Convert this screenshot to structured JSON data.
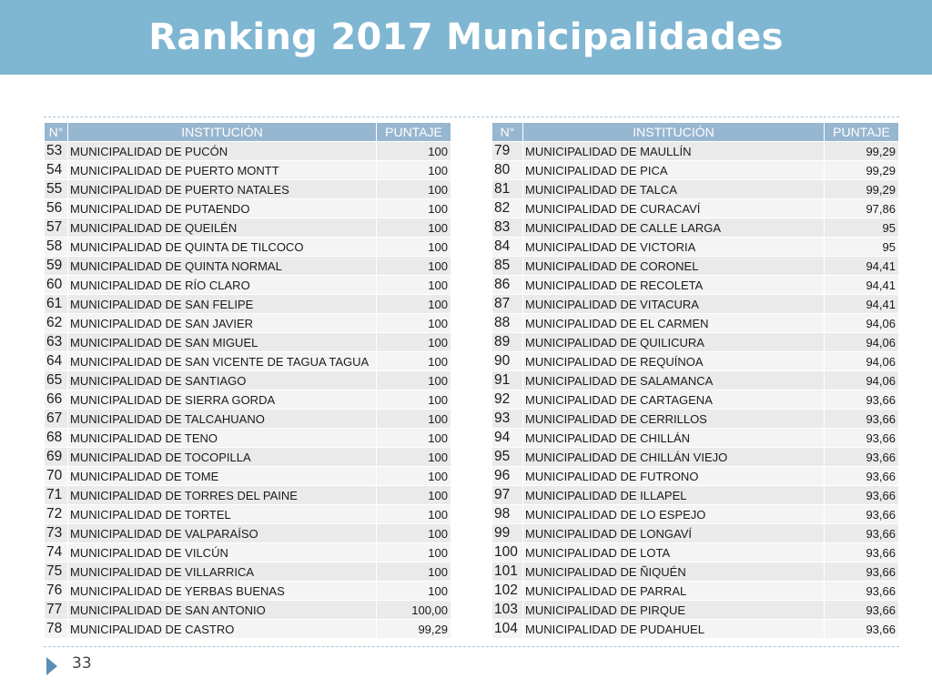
{
  "title": "Ranking 2017 Municipalidades",
  "headers": {
    "num": "N°",
    "institution": "INSTITUCIÓN",
    "score": "PUNTAJE"
  },
  "left_rows": [
    {
      "num": "53",
      "name": "MUNICIPALIDAD DE PUCÓN",
      "score": "100"
    },
    {
      "num": "54",
      "name": "MUNICIPALIDAD DE PUERTO MONTT",
      "score": "100"
    },
    {
      "num": "55",
      "name": "MUNICIPALIDAD DE PUERTO NATALES",
      "score": "100"
    },
    {
      "num": "56",
      "name": "MUNICIPALIDAD DE PUTAENDO",
      "score": "100"
    },
    {
      "num": "57",
      "name": "MUNICIPALIDAD DE QUEILÉN",
      "score": "100"
    },
    {
      "num": "58",
      "name": "MUNICIPALIDAD DE QUINTA DE TILCOCO",
      "score": "100"
    },
    {
      "num": "59",
      "name": "MUNICIPALIDAD DE QUINTA NORMAL",
      "score": "100"
    },
    {
      "num": "60",
      "name": "MUNICIPALIDAD DE RÍO CLARO",
      "score": "100"
    },
    {
      "num": "61",
      "name": "MUNICIPALIDAD DE SAN FELIPE",
      "score": "100"
    },
    {
      "num": "62",
      "name": "MUNICIPALIDAD DE SAN JAVIER",
      "score": "100"
    },
    {
      "num": "63",
      "name": "MUNICIPALIDAD DE SAN MIGUEL",
      "score": "100"
    },
    {
      "num": "64",
      "name": "MUNICIPALIDAD DE SAN VICENTE DE TAGUA TAGUA",
      "score": "100"
    },
    {
      "num": "65",
      "name": "MUNICIPALIDAD DE SANTIAGO",
      "score": "100"
    },
    {
      "num": "66",
      "name": "MUNICIPALIDAD DE SIERRA GORDA",
      "score": "100"
    },
    {
      "num": "67",
      "name": "MUNICIPALIDAD DE TALCAHUANO",
      "score": "100"
    },
    {
      "num": "68",
      "name": "MUNICIPALIDAD DE TENO",
      "score": "100"
    },
    {
      "num": "69",
      "name": "MUNICIPALIDAD DE TOCOPILLA",
      "score": "100"
    },
    {
      "num": "70",
      "name": "MUNICIPALIDAD DE TOME",
      "score": "100"
    },
    {
      "num": "71",
      "name": "MUNICIPALIDAD DE TORRES DEL PAINE",
      "score": "100"
    },
    {
      "num": "72",
      "name": "MUNICIPALIDAD DE TORTEL",
      "score": "100"
    },
    {
      "num": "73",
      "name": "MUNICIPALIDAD DE VALPARAÍSO",
      "score": "100"
    },
    {
      "num": "74",
      "name": "MUNICIPALIDAD DE VILCÚN",
      "score": "100"
    },
    {
      "num": "75",
      "name": "MUNICIPALIDAD DE VILLARRICA",
      "score": "100"
    },
    {
      "num": "76",
      "name": "MUNICIPALIDAD DE YERBAS BUENAS",
      "score": "100"
    },
    {
      "num": "77",
      "name": "MUNICIPALIDAD DE SAN ANTONIO",
      "score": "100,00"
    },
    {
      "num": "78",
      "name": "MUNICIPALIDAD DE CASTRO",
      "score": "99,29"
    }
  ],
  "right_rows": [
    {
      "num": "79",
      "name": "MUNICIPALIDAD DE MAULLÍN",
      "score": "99,29"
    },
    {
      "num": "80",
      "name": "MUNICIPALIDAD DE PICA",
      "score": "99,29"
    },
    {
      "num": "81",
      "name": "MUNICIPALIDAD DE TALCA",
      "score": "99,29"
    },
    {
      "num": "82",
      "name": "MUNICIPALIDAD DE CURACAVÍ",
      "score": "97,86"
    },
    {
      "num": "83",
      "name": "MUNICIPALIDAD DE CALLE LARGA",
      "score": "95"
    },
    {
      "num": "84",
      "name": "MUNICIPALIDAD DE VICTORIA",
      "score": "95"
    },
    {
      "num": "85",
      "name": "MUNICIPALIDAD DE CORONEL",
      "score": "94,41"
    },
    {
      "num": "86",
      "name": "MUNICIPALIDAD DE RECOLETA",
      "score": "94,41"
    },
    {
      "num": "87",
      "name": "MUNICIPALIDAD DE VITACURA",
      "score": "94,41"
    },
    {
      "num": "88",
      "name": "MUNICIPALIDAD DE EL CARMEN",
      "score": "94,06"
    },
    {
      "num": "89",
      "name": "MUNICIPALIDAD DE QUILICURA",
      "score": "94,06"
    },
    {
      "num": "90",
      "name": "MUNICIPALIDAD DE REQUÍNOA",
      "score": "94,06"
    },
    {
      "num": "91",
      "name": "MUNICIPALIDAD DE SALAMANCA",
      "score": "94,06"
    },
    {
      "num": "92",
      "name": "MUNICIPALIDAD DE CARTAGENA",
      "score": "93,66"
    },
    {
      "num": "93",
      "name": "MUNICIPALIDAD DE CERRILLOS",
      "score": "93,66"
    },
    {
      "num": "94",
      "name": "MUNICIPALIDAD DE CHILLÁN",
      "score": "93,66"
    },
    {
      "num": "95",
      "name": "MUNICIPALIDAD DE CHILLÁN VIEJO",
      "score": "93,66"
    },
    {
      "num": "96",
      "name": "MUNICIPALIDAD DE FUTRONO",
      "score": "93,66"
    },
    {
      "num": "97",
      "name": "MUNICIPALIDAD DE ILLAPEL",
      "score": "93,66"
    },
    {
      "num": "98",
      "name": "MUNICIPALIDAD DE LO ESPEJO",
      "score": "93,66"
    },
    {
      "num": "99",
      "name": "MUNICIPALIDAD DE LONGAVÍ",
      "score": "93,66"
    },
    {
      "num": "100",
      "name": "MUNICIPALIDAD DE LOTA",
      "score": "93,66"
    },
    {
      "num": "101",
      "name": "MUNICIPALIDAD DE ÑIQUÉN",
      "score": "93,66"
    },
    {
      "num": "102",
      "name": "MUNICIPALIDAD DE PARRAL",
      "score": "93,66"
    },
    {
      "num": "103",
      "name": "MUNICIPALIDAD DE PIRQUE",
      "score": "93,66"
    },
    {
      "num": "104",
      "name": "MUNICIPALIDAD DE PUDAHUEL",
      "score": "93,66"
    }
  ],
  "page_number": "33",
  "footer_icon": "triangle-right-icon",
  "colors": {
    "title_band": "#7fb6d2",
    "header_bg": "#97b6d0",
    "row_odd": "#eaeaea",
    "row_even": "#f4f4f4",
    "footer_arrow": "#5b8fb5"
  }
}
